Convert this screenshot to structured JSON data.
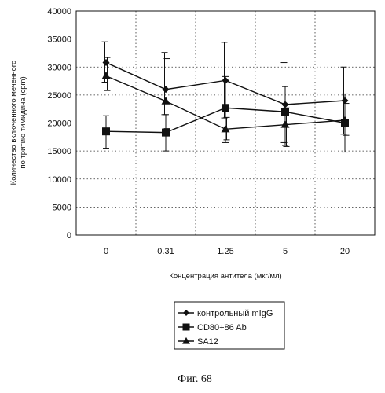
{
  "chart_data": {
    "type": "line",
    "categories": [
      "0",
      "0.31",
      "1.25",
      "5",
      "20"
    ],
    "xlabel": "Концентрация антитела (мкг/мл)",
    "ylabel_line1": "Количество включенного меченного",
    "ylabel_line2": "по тритию тимидина (cpm)",
    "ylim": [
      0,
      40000
    ],
    "yticks": [
      "0",
      "5000",
      "10000",
      "15000",
      "20000",
      "25000",
      "30000",
      "35000",
      "40000"
    ],
    "grid": true,
    "legend_position": "bottom-center",
    "series": [
      {
        "name": "контрольный mIgG",
        "marker": "diamond",
        "values": [
          30800,
          26000,
          27600,
          23300,
          24000
        ],
        "err_low": [
          27300,
          21500,
          20900,
          16500,
          18000
        ],
        "err_high": [
          34500,
          32600,
          34400,
          30800,
          30000
        ]
      },
      {
        "name": "CD80+86 Ab",
        "marker": "square",
        "values": [
          18500,
          18300,
          22700,
          22000,
          20000
        ],
        "err_low": [
          15500,
          15000,
          16500,
          16000,
          14800
        ],
        "err_high": [
          21300,
          21500,
          28300,
          26500,
          25200
        ]
      },
      {
        "name": "SA12",
        "marker": "triangle",
        "values": [
          28400,
          23900,
          18900,
          19700,
          20500
        ],
        "err_low": [
          25800,
          19000,
          17000,
          15800,
          17800
        ],
        "err_high": [
          31700,
          31500,
          21000,
          22700,
          23500
        ]
      }
    ]
  },
  "caption": "Фиг. 68"
}
